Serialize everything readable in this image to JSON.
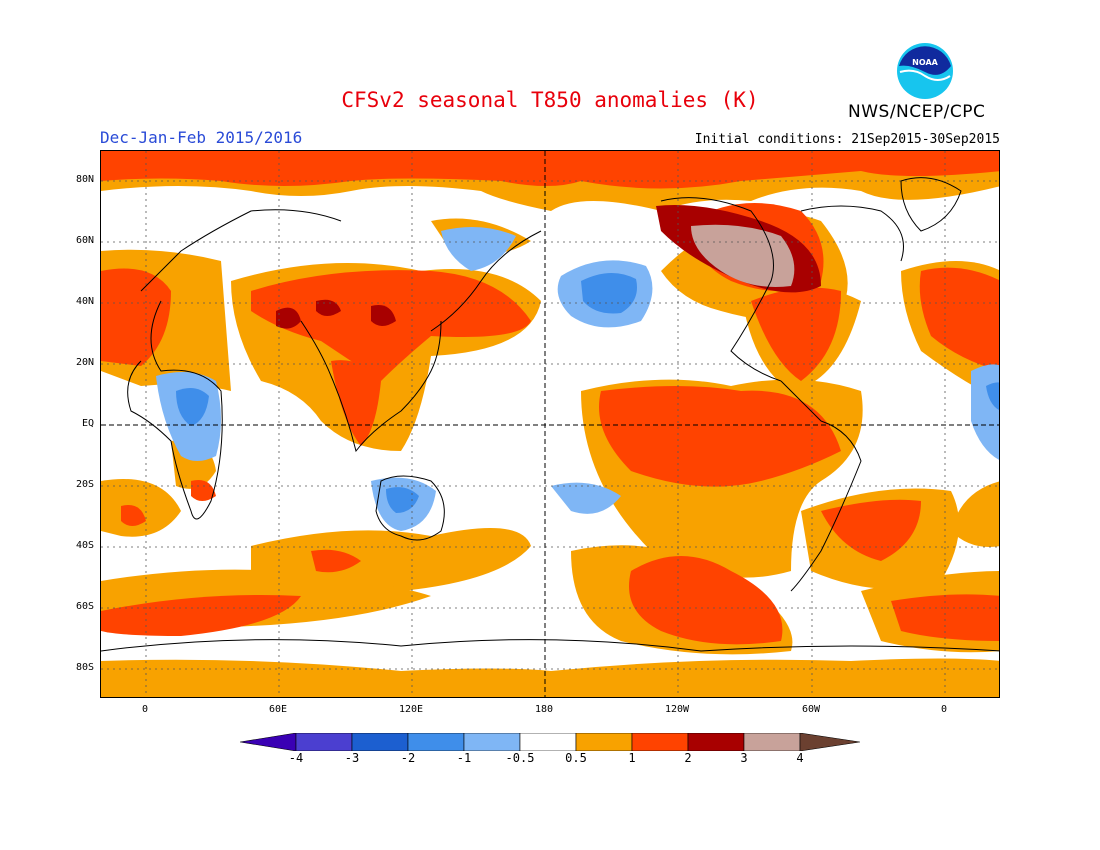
{
  "title": "CFSv2 seasonal T850 anomalies (K)",
  "season": "Dec-Jan-Feb 2015/2016",
  "initial_conditions": "Initial conditions: 21Sep2015-30Sep2015",
  "agency": "NWS/NCEP/CPC",
  "logo_text": "NOAA",
  "lat_labels": [
    "80N",
    "60N",
    "40N",
    "20N",
    "EQ",
    "20S",
    "40S",
    "60S",
    "80S"
  ],
  "lon_labels": [
    "0",
    "60E",
    "120E",
    "180",
    "120W",
    "60W",
    "0"
  ],
  "colorbar": {
    "labels": [
      "-4",
      "-3",
      "-2",
      "-1",
      "-0.5",
      "0.5",
      "1",
      "2",
      "3",
      "4"
    ],
    "colors": [
      "#3a00b4",
      "#4b3fd0",
      "#1c5fd0",
      "#3f8eea",
      "#7fb6f5",
      "#ffffff",
      "#f8a200",
      "#ff4300",
      "#a80000",
      "#c8a29a",
      "#6b4030"
    ]
  },
  "icons": {
    "logo": "noaa-logo-icon"
  }
}
